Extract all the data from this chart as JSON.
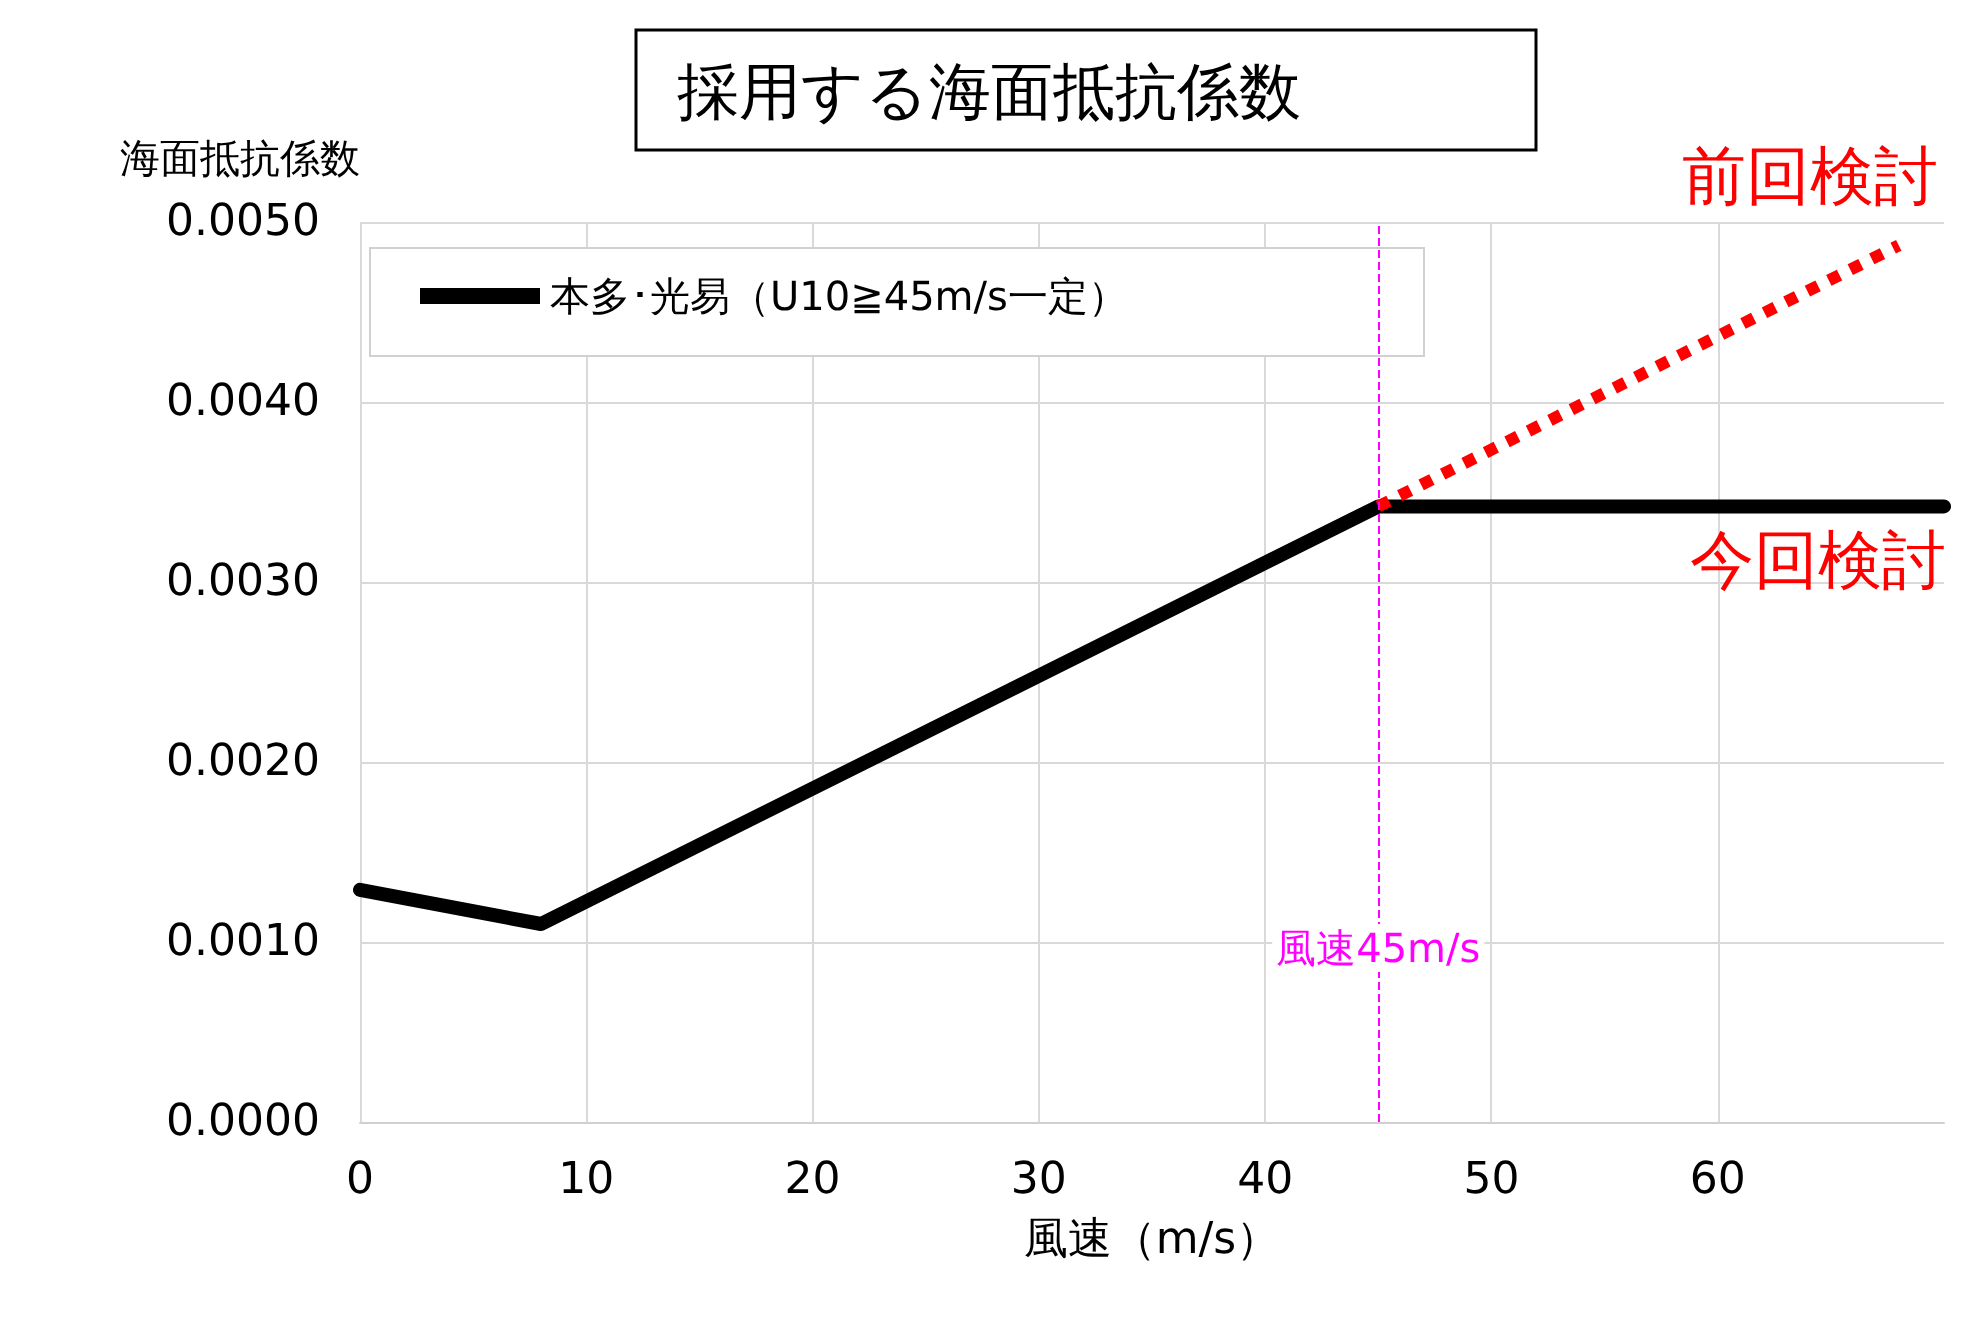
{
  "chart_data": {
    "type": "line",
    "title": "採用する海面抵抗係数",
    "xlabel": "風速（m/s）",
    "ylabel": "海面抵抗係数",
    "xlim": [
      0,
      70
    ],
    "xticks": [
      0,
      10,
      20,
      30,
      40,
      50,
      60
    ],
    "ylim": [
      0,
      0.005
    ],
    "yticks": [
      {
        "value": 0,
        "label": "0.0000"
      },
      {
        "value": 0.001,
        "label": "0.0010"
      },
      {
        "value": 0.002,
        "label": "0.0020"
      },
      {
        "value": 0.003,
        "label": "0.0030"
      },
      {
        "value": 0.004,
        "label": "0.0040"
      },
      {
        "value": 0.005,
        "label": "0.0050"
      }
    ],
    "grid": true,
    "legend": "top left",
    "marker": "none",
    "series": [
      {
        "name": "本多･光易（U10≧45m/s一定）",
        "color": "#000000",
        "line_style": "solid",
        "x": [
          0,
          8,
          45,
          70
        ],
        "values": [
          0.00129,
          0.0011,
          0.00342,
          0.00342
        ]
      },
      {
        "color": "#ff0000",
        "line_style": "dotted",
        "x": [
          45,
          68
        ],
        "values": [
          0.00342,
          0.00487
        ]
      }
    ],
    "ref_lines": [
      {
        "axis": "x",
        "value": 45,
        "label": "風速45m/s",
        "color": "#ff00ff",
        "line_style": "dashed"
      }
    ],
    "annotations": [
      "前回検討",
      "今回検討"
    ]
  }
}
